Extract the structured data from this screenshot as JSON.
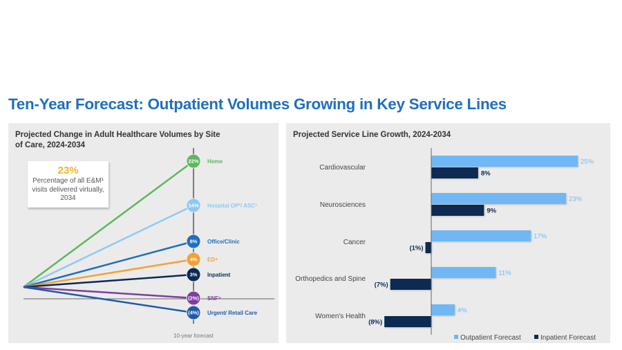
{
  "page": {
    "title": "Ten-Year Forecast: Outpatient Volumes Growing in Key Service Lines"
  },
  "left_panel": {
    "title": "Projected Change in Adult Healthcare Volumes by Site of Care, 2024-2034",
    "callout": {
      "value": "23%",
      "description": "Percentage of all E&M¹ visits delivered virtually, 2034"
    },
    "axis_note": "10-year forecast"
  },
  "right_panel": {
    "title": "Projected Service Line Growth, 2024-2034"
  },
  "colors": {
    "title_blue": "#1f6fbf",
    "outpatient": "#6fb8f5",
    "inpatient": "#0c2a52",
    "home": "#5cb85c",
    "hospital_op": "#8ec9f5",
    "office": "#1f6fbf",
    "ed": "#f3a035",
    "inpatient_site": "#0c2a52",
    "snf": "#7b3fa0",
    "urgent": "#1e5aa8"
  },
  "chart_data": [
    {
      "type": "line",
      "title": "Projected Change in Adult Healthcare Volumes by Site of Care, 2024-2034",
      "xlabel": "10-year forecast",
      "ylabel": "",
      "x": [
        "2024",
        "2034"
      ],
      "ylim": [
        -5,
        23
      ],
      "series": [
        {
          "name": "Home",
          "label": "22%",
          "values": [
            0,
            22
          ],
          "color": "#5cb85c"
        },
        {
          "name": "Hospital OP²/ ASC³",
          "label": "14%",
          "values": [
            0,
            14
          ],
          "color": "#8ec9f5"
        },
        {
          "name": "Office/Clinic",
          "label": "8%",
          "values": [
            0,
            8
          ],
          "color": "#1f6fbf"
        },
        {
          "name": "ED⁴",
          "label": "4%",
          "values": [
            0,
            4
          ],
          "color": "#f3a035"
        },
        {
          "name": "Inpatient",
          "label": "3%",
          "values": [
            0,
            3
          ],
          "color": "#0c2a52"
        },
        {
          "name": "SNF⁵",
          "label": "(2%)",
          "values": [
            0,
            -2
          ],
          "color": "#7b3fa0"
        },
        {
          "name": "Urgent/ Retail Care",
          "label": "(4%)",
          "values": [
            0,
            -4
          ],
          "color": "#1e5aa8"
        }
      ],
      "grid": false,
      "legend": "inline-right"
    },
    {
      "type": "bar",
      "orientation": "horizontal",
      "title": "Projected Service Line Growth, 2024-2034",
      "categories": [
        "Cardiovascular",
        "Neurosciences",
        "Cancer",
        "Orthopedics and Spine",
        "Women's Health"
      ],
      "series": [
        {
          "name": "Outpatient Forecast",
          "values": [
            25,
            23,
            17,
            11,
            4
          ],
          "labels": [
            "25%",
            "23%",
            "17%",
            "11%",
            "4%"
          ],
          "color": "#6fb8f5"
        },
        {
          "name": "Inpatient Forecast",
          "values": [
            8,
            9,
            -1,
            -7,
            -8
          ],
          "labels": [
            "8%",
            "9%",
            "(1%)",
            "(7%)",
            "(8%)"
          ],
          "color": "#0c2a52"
        }
      ],
      "xlim": [
        -9,
        26
      ],
      "grid": false,
      "legend": "bottom-right"
    }
  ]
}
